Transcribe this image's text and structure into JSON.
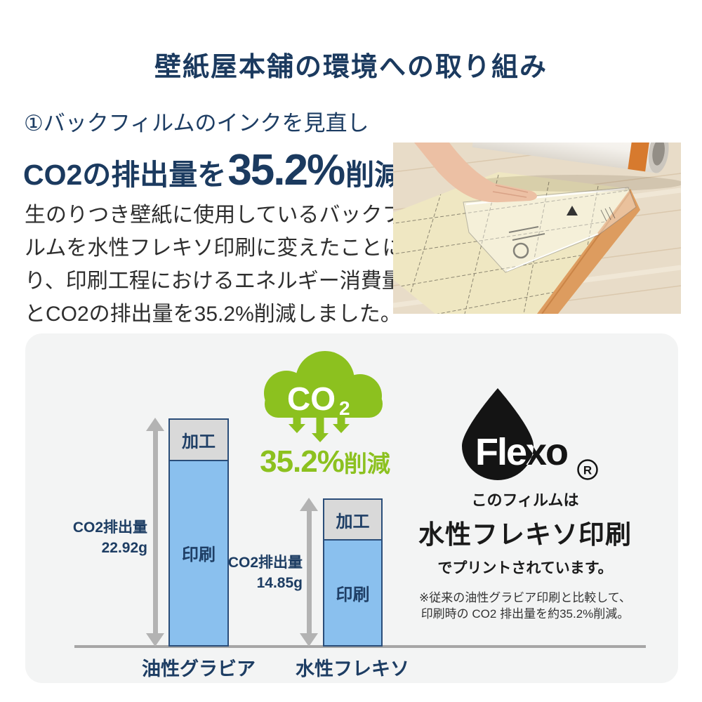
{
  "header": {
    "title": "壁紙屋本舗の環境への取り組み"
  },
  "intro": {
    "heading": "①バックフィルムのインクを見直し",
    "lead": {
      "prefix": "CO2の排出量を",
      "highlight": "35.2%",
      "suffix": "削減"
    },
    "body_lines": [
      "生のりつき壁紙に使用しているバックフィ",
      "ルムを水性フレキソ印刷に変えたことによ",
      "り、印刷工程におけるエネルギー消費量",
      "とCO2の排出量を35.2%削減しました。"
    ]
  },
  "colors": {
    "navy": "#1b3a5f",
    "green": "#8cc11f",
    "bar_blue": "#8ac0ee",
    "segment_gray": "#d9d9d9",
    "panel_bg": "#f3f4f4",
    "arrow_gray": "#b3b3b3",
    "axis_gray": "#a6a6a6",
    "black": "#111111"
  },
  "co2_badge": {
    "cloud_text": "CO",
    "cloud_sub": "2",
    "reduction_value": "35.2%",
    "reduction_suffix": "削減"
  },
  "flexo": {
    "brand": "Flexo",
    "registered": "R",
    "line1": "このフィルムは",
    "line2": "水性フレキソ印刷",
    "line3": "でプリントされています。",
    "note_line1": "※従来の油性グラビア印刷と比較して、",
    "note_line2": "印刷時の CO2 排出量を約35.2%削減。"
  },
  "chart_data": {
    "type": "bar",
    "stacked": true,
    "categories": [
      "油性グラビア",
      "水性フレキソ"
    ],
    "series": [
      {
        "name": "加工",
        "values": [
          4.3,
          4.2
        ]
      },
      {
        "name": "印刷",
        "values": [
          18.62,
          10.65
        ]
      }
    ],
    "totals": [
      22.92,
      14.85
    ],
    "unit": "g",
    "measure_labels": [
      {
        "line1": "CO2排出量",
        "line2": "22.92g"
      },
      {
        "line1": "CO2排出量",
        "line2": "14.85g"
      }
    ],
    "ylim": [
      0,
      22.92
    ],
    "grid": false,
    "legend": false
  }
}
